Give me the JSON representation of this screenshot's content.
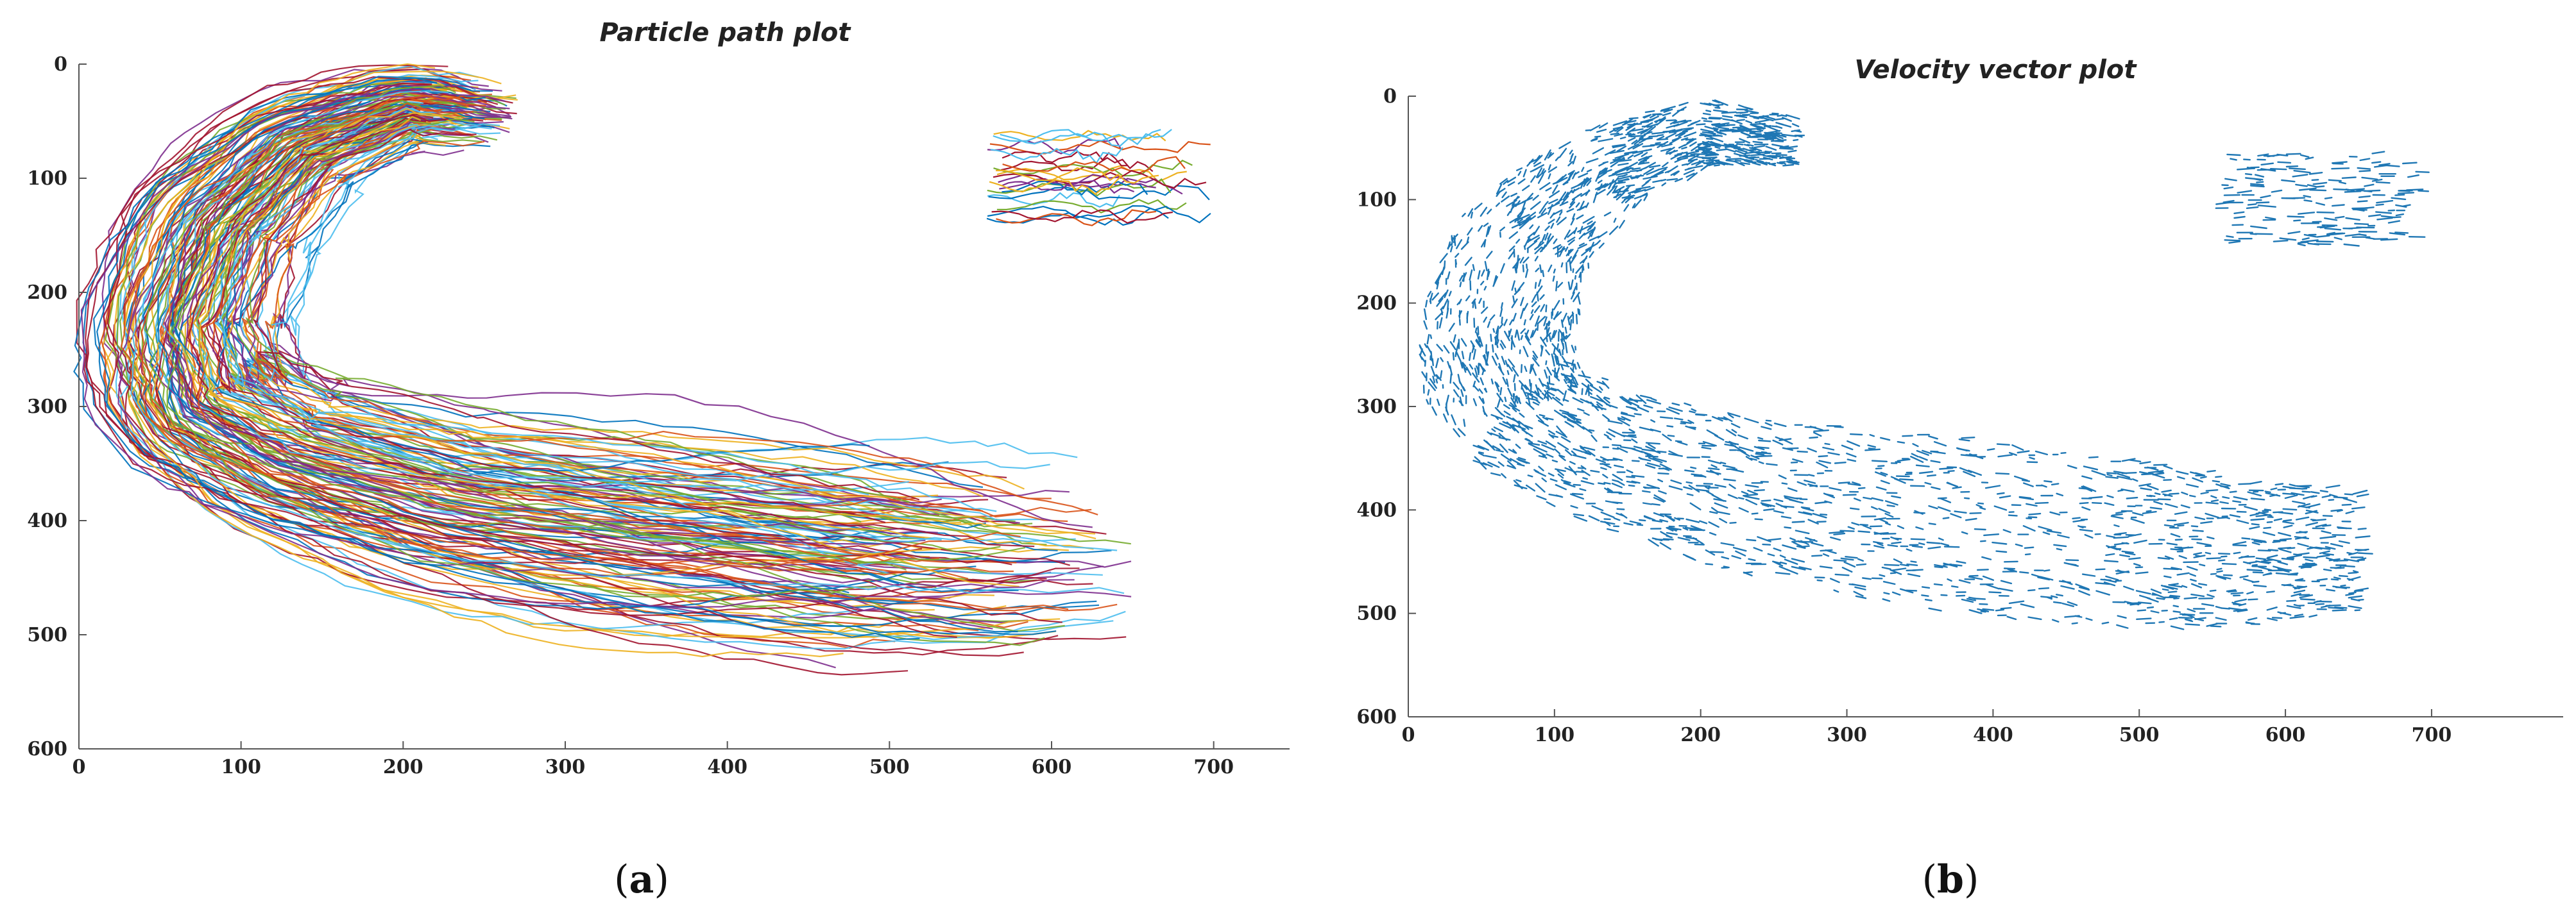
{
  "figure": {
    "panels": [
      {
        "sublabel_open": "(",
        "sublabel_letter": "a",
        "sublabel_close": ")"
      },
      {
        "sublabel_open": "(",
        "sublabel_letter": "b",
        "sublabel_close": ")"
      }
    ]
  },
  "chart_data": [
    {
      "type": "line",
      "title": "Particle path plot",
      "xlabel": "",
      "ylabel": "",
      "xlim": [
        0,
        750
      ],
      "ylim": [
        0,
        600
      ],
      "y_reversed": true,
      "x_ticks": [
        0,
        100,
        200,
        300,
        400,
        500,
        600,
        700
      ],
      "y_ticks": [
        0,
        100,
        200,
        300,
        400,
        500,
        600
      ],
      "grid": false,
      "series_colors": [
        "#0072BD",
        "#D95319",
        "#EDB120",
        "#7E2F8E",
        "#77AC30",
        "#4DBEEE",
        "#A2142F"
      ],
      "line_count_main": 140,
      "line_count_inset": 26,
      "main_region": {
        "x": [
          30,
          700
        ],
        "y": [
          20,
          540
        ],
        "flow": "C-shaped path from upper inlet (x≈280, y≈20–80) sweeping left around x≈40 at y≈250 then along a wide lower channel to x≈650, y≈380–520"
      },
      "inset_region": {
        "x": [
          560,
          700
        ],
        "y": [
          60,
          140
        ],
        "flow": "short horizontal streaks"
      }
    },
    {
      "type": "scatter",
      "title": "Velocity vector plot",
      "xlabel": "",
      "ylabel": "",
      "xlim": [
        0,
        790
      ],
      "ylim": [
        0,
        600
      ],
      "y_reversed": true,
      "x_ticks": [
        0,
        100,
        200,
        300,
        400,
        500,
        600,
        700
      ],
      "y_ticks": [
        0,
        100,
        200,
        300,
        400,
        500,
        600
      ],
      "grid": false,
      "color": "#1F77B4",
      "vector_count_main": 2600,
      "vector_count_inset": 180,
      "main_region": {
        "x": [
          30,
          670
        ],
        "y": [
          20,
          550
        ],
        "flow": "same C-shaped flow field rendered as short velocity arrows"
      },
      "inset_region": {
        "x": [
          550,
          700
        ],
        "y": [
          50,
          150
        ],
        "flow": "rightward arrows"
      }
    }
  ]
}
